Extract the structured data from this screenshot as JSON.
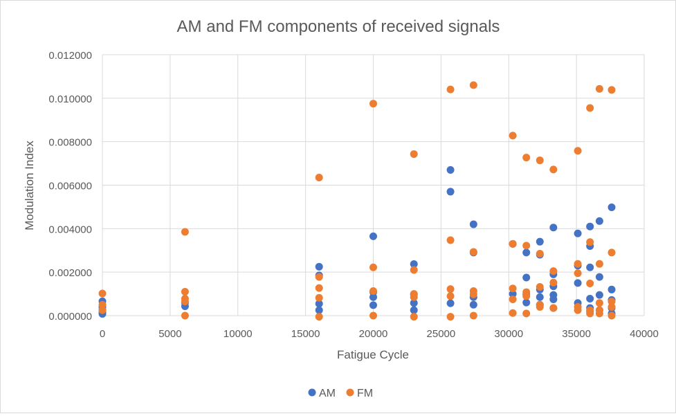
{
  "chart_data": {
    "type": "scatter",
    "title": "AM and FM components of received signals",
    "xlabel": "Fatigue Cycle",
    "ylabel": "Modulation Index",
    "xlim": [
      0,
      40000
    ],
    "ylim": [
      0,
      0.012
    ],
    "x_ticks": [
      "0",
      "5000",
      "10000",
      "15000",
      "20000",
      "25000",
      "30000",
      "35000",
      "40000"
    ],
    "y_ticks": [
      "0.000000",
      "0.002000",
      "0.004000",
      "0.006000",
      "0.008000",
      "0.010000",
      "0.012000"
    ],
    "grid": true,
    "legend_position": "bottom",
    "series": [
      {
        "name": "AM",
        "color": "#4472C4",
        "points": [
          [
            0,
            0.00066
          ],
          [
            0,
            0.0004
          ],
          [
            0,
            0.00028
          ],
          [
            0,
            0.00015
          ],
          [
            0,
            8e-05
          ],
          [
            6100,
            0.00059
          ],
          [
            6100,
            0.00043
          ],
          [
            16000,
            0.00225
          ],
          [
            16000,
            0.00185
          ],
          [
            16000,
            0.00055
          ],
          [
            16000,
            0.00025
          ],
          [
            20000,
            0.00365
          ],
          [
            20000,
            0.00108
          ],
          [
            20000,
            0.00085
          ],
          [
            20000,
            0.00048
          ],
          [
            23000,
            0.00237
          ],
          [
            23000,
            0.00098
          ],
          [
            23000,
            0.00058
          ],
          [
            23000,
            0.00025
          ],
          [
            25700,
            0.0067
          ],
          [
            25700,
            0.0057
          ],
          [
            25700,
            0.00057
          ],
          [
            27400,
            0.0042
          ],
          [
            27400,
            0.0029
          ],
          [
            27400,
            0.00085
          ],
          [
            27400,
            0.0005
          ],
          [
            30300,
            0.0033
          ],
          [
            30300,
            0.001
          ],
          [
            31300,
            0.0029
          ],
          [
            31300,
            0.00175
          ],
          [
            31300,
            0.00098
          ],
          [
            31300,
            0.0006
          ],
          [
            32300,
            0.0034
          ],
          [
            32300,
            0.0028
          ],
          [
            32300,
            0.0012
          ],
          [
            32300,
            0.00085
          ],
          [
            32300,
            0.0005
          ],
          [
            33300,
            0.00405
          ],
          [
            33300,
            0.0019
          ],
          [
            33300,
            0.00135
          ],
          [
            33300,
            0.00095
          ],
          [
            33300,
            0.00075
          ],
          [
            33300,
            0.00035
          ],
          [
            35100,
            0.00378
          ],
          [
            35100,
            0.0023
          ],
          [
            35100,
            0.0015
          ],
          [
            35100,
            0.00058
          ],
          [
            36000,
            0.0041
          ],
          [
            36000,
            0.0032
          ],
          [
            36000,
            0.00222
          ],
          [
            36000,
            0.00078
          ],
          [
            36000,
            0.00035
          ],
          [
            36000,
            0.0002
          ],
          [
            36700,
            0.00435
          ],
          [
            36700,
            0.00178
          ],
          [
            36700,
            0.00095
          ],
          [
            36700,
            0.00025
          ],
          [
            37600,
            0.00498
          ],
          [
            37600,
            0.0012
          ],
          [
            37600,
            0.00072
          ],
          [
            37600,
            0.00035
          ],
          [
            37600,
            0.0001
          ]
        ]
      },
      {
        "name": "FM",
        "color": "#ED7D31",
        "points": [
          [
            0,
            0.00102
          ],
          [
            0,
            0.0005
          ],
          [
            0,
            0.00025
          ],
          [
            6100,
            0.00385
          ],
          [
            6100,
            0.0011
          ],
          [
            6100,
            0.00078
          ],
          [
            6100,
            0.00065
          ],
          [
            6100,
            0.0
          ],
          [
            16000,
            0.00635
          ],
          [
            16000,
            0.00178
          ],
          [
            16000,
            0.00127
          ],
          [
            16000,
            0.00082
          ],
          [
            16000,
            -5e-05
          ],
          [
            20000,
            0.00975
          ],
          [
            20000,
            0.00222
          ],
          [
            20000,
            0.00113
          ],
          [
            20000,
            0.0
          ],
          [
            23000,
            0.00743
          ],
          [
            23000,
            0.0021
          ],
          [
            23000,
            0.001
          ],
          [
            23000,
            0.00085
          ],
          [
            23000,
            -5e-05
          ],
          [
            25700,
            0.0104
          ],
          [
            25700,
            0.00347
          ],
          [
            25700,
            0.00122
          ],
          [
            25700,
            0.0009
          ],
          [
            25700,
            -5e-05
          ],
          [
            27400,
            0.0106
          ],
          [
            27400,
            0.00293
          ],
          [
            27400,
            0.00113
          ],
          [
            27400,
            0.00098
          ],
          [
            27400,
            0.0
          ],
          [
            30300,
            0.00828
          ],
          [
            30300,
            0.0033
          ],
          [
            30300,
            0.00125
          ],
          [
            30300,
            0.00075
          ],
          [
            30300,
            0.00012
          ],
          [
            31300,
            0.00727
          ],
          [
            31300,
            0.00322
          ],
          [
            31300,
            0.00108
          ],
          [
            31300,
            0.0009
          ],
          [
            31300,
            0.0001
          ],
          [
            32300,
            0.00714
          ],
          [
            32300,
            0.00285
          ],
          [
            32300,
            0.00132
          ],
          [
            32300,
            0.0005
          ],
          [
            32300,
            0.0004
          ],
          [
            33300,
            0.00672
          ],
          [
            33300,
            0.00205
          ],
          [
            33300,
            0.00152
          ],
          [
            33300,
            0.00035
          ],
          [
            35100,
            0.00758
          ],
          [
            35100,
            0.00238
          ],
          [
            35100,
            0.00195
          ],
          [
            35100,
            0.0004
          ],
          [
            35100,
            0.00025
          ],
          [
            36000,
            0.00955
          ],
          [
            36000,
            0.00338
          ],
          [
            36000,
            0.00148
          ],
          [
            36000,
            0.00025
          ],
          [
            36000,
            0.0001
          ],
          [
            36700,
            0.01043
          ],
          [
            36700,
            0.00238
          ],
          [
            36700,
            0.00058
          ],
          [
            36700,
            0.00025
          ],
          [
            36700,
            0.0001
          ],
          [
            37600,
            0.01038
          ],
          [
            37600,
            0.0029
          ],
          [
            37600,
            0.00065
          ],
          [
            37600,
            0.0004
          ],
          [
            37600,
            0.0
          ]
        ]
      }
    ]
  }
}
